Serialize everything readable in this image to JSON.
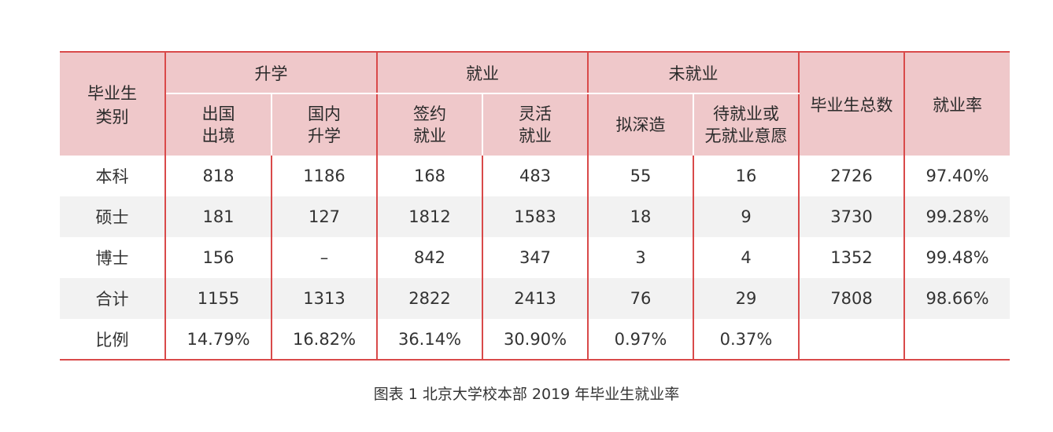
{
  "table": {
    "corner_label_line1": "毕业生",
    "corner_label_line2": "类别",
    "groups": {
      "further_study": "升学",
      "employed": "就业",
      "not_employed": "未就业"
    },
    "sub": {
      "abroad_l1": "出国",
      "abroad_l2": "出境",
      "domestic_l1": "国内",
      "domestic_l2": "升学",
      "signed_l1": "签约",
      "signed_l2": "就业",
      "flexible_l1": "灵活",
      "flexible_l2": "就业",
      "planning": "拟深造",
      "waiting_l1": "待就业或",
      "waiting_l2": "无就业意愿"
    },
    "total_header": "毕业生总数",
    "rate_header": "就业率",
    "rows": [
      {
        "category": "本科",
        "abroad": "818",
        "domestic": "1186",
        "signed": "168",
        "flexible": "483",
        "planning": "55",
        "waiting": "16",
        "total": "2726",
        "rate": "97.40%"
      },
      {
        "category": "硕士",
        "abroad": "181",
        "domestic": "127",
        "signed": "1812",
        "flexible": "1583",
        "planning": "18",
        "waiting": "9",
        "total": "3730",
        "rate": "99.28%"
      },
      {
        "category": "博士",
        "abroad": "156",
        "domestic": "–",
        "signed": "842",
        "flexible": "347",
        "planning": "3",
        "waiting": "4",
        "total": "1352",
        "rate": "99.48%"
      },
      {
        "category": "合计",
        "abroad": "1155",
        "domestic": "1313",
        "signed": "2822",
        "flexible": "2413",
        "planning": "76",
        "waiting": "29",
        "total": "7808",
        "rate": "98.66%"
      },
      {
        "category": "比例",
        "abroad": "14.79%",
        "domestic": "16.82%",
        "signed": "36.14%",
        "flexible": "30.90%",
        "planning": "0.97%",
        "waiting": "0.37%",
        "total": "",
        "rate": ""
      }
    ]
  },
  "caption": "图表 1  北京大学校本部 2019 年毕业生就业率",
  "colors": {
    "header_bg": "#efc8ca",
    "separator_red": "#d94a4a",
    "row_shade": "#f2f2f2"
  }
}
